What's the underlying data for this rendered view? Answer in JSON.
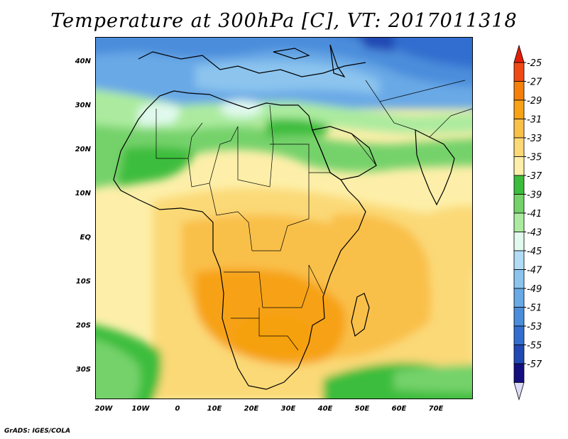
{
  "title": "Temperature at 300hPa [C], VT: 2017011318",
  "credit": "GrADS: IGES/COLA",
  "map": {
    "lon_labels": [
      "20W",
      "10W",
      "0",
      "10E",
      "20E",
      "30E",
      "40E",
      "50E",
      "60E",
      "70E"
    ],
    "lat_labels": [
      "40N",
      "30N",
      "20N",
      "10N",
      "EQ",
      "10S",
      "20S",
      "30S"
    ],
    "field": "Temperature at 300hPa",
    "units": "C"
  },
  "colorbar": {
    "labels": [
      "-25",
      "-27",
      "-29",
      "-31",
      "-33",
      "-35",
      "-37",
      "-39",
      "-41",
      "-43",
      "-45",
      "-47",
      "-49",
      "-51",
      "-53",
      "-55",
      "-57"
    ],
    "colors": [
      "#f04a14",
      "#f57f0b",
      "#f7a217",
      "#f9c04a",
      "#fbd977",
      "#fdefa9",
      "#3cbd3c",
      "#74d26a",
      "#aceb9f",
      "#e1f9ee",
      "#b2dcf5",
      "#8cc4ee",
      "#69a9e6",
      "#4b8ddb",
      "#336ecf",
      "#2149b4",
      "#140f7f"
    ],
    "top_arrow_color": "#e21e07",
    "bottom_arrow_color": "#dcdcfa"
  }
}
